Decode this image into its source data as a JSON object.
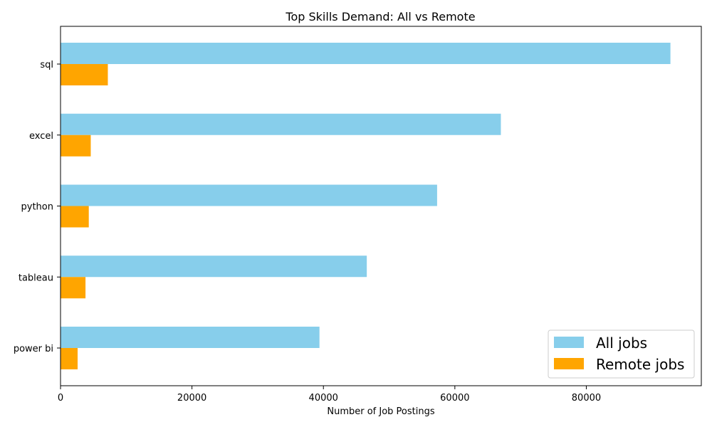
{
  "chart_data": {
    "type": "bar",
    "orientation": "horizontal",
    "title": "Top Skills Demand: All vs Remote",
    "xlabel": "Number of Job Postings",
    "ylabel": "",
    "categories": [
      "sql",
      "excel",
      "python",
      "tableau",
      "power bi"
    ],
    "series": [
      {
        "name": "All jobs",
        "color": "#87ceeb",
        "values": [
          92800,
          67000,
          57300,
          46600,
          39400
        ]
      },
      {
        "name": "Remote jobs",
        "color": "#ffa500",
        "values": [
          7200,
          4600,
          4300,
          3800,
          2600
        ]
      }
    ],
    "xlim": [
      0,
      97500
    ],
    "xticks": [
      0,
      20000,
      40000,
      60000,
      80000
    ],
    "xtick_labels": [
      "0",
      "20000",
      "40000",
      "60000",
      "80000"
    ],
    "grid": false,
    "legend_position": "bottom-right"
  }
}
